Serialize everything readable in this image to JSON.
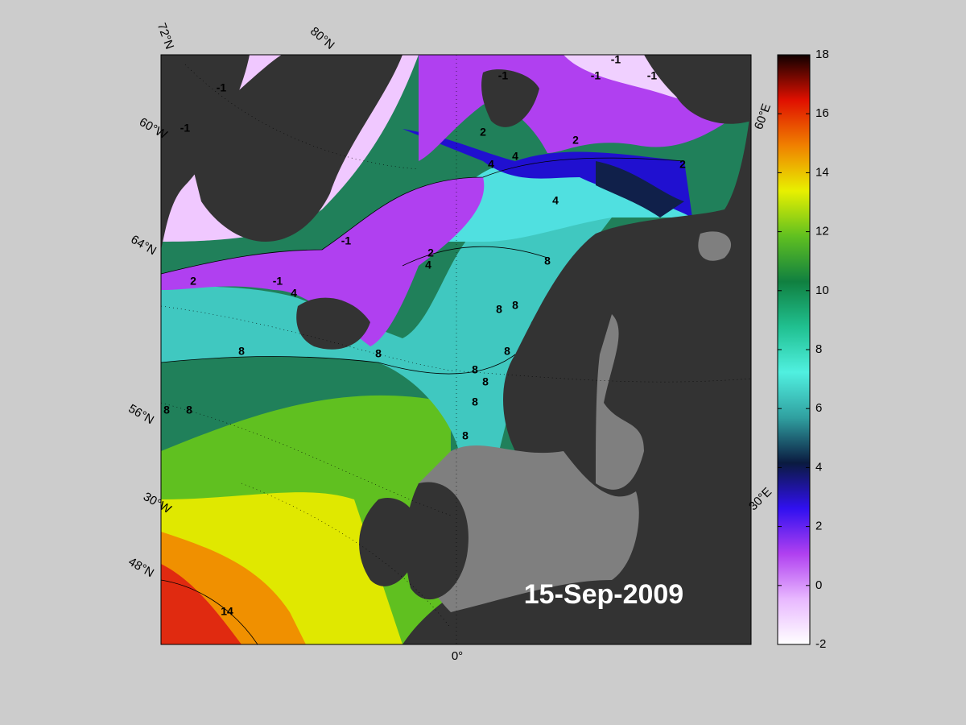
{
  "map": {
    "date": "15-Sep-2009",
    "graticule_labels": [
      "72°N",
      "80°N",
      "60°W",
      "64°N",
      "56°N",
      "30°W",
      "48°N",
      "0°",
      "60°E",
      "30°E"
    ],
    "contour_labels": [
      "-1",
      "-1",
      "-1",
      "-1",
      "-1",
      "-1",
      "-1",
      "-1",
      "2",
      "2",
      "2",
      "2",
      "2",
      "4",
      "4",
      "4",
      "4",
      "4",
      "8",
      "8",
      "8",
      "8",
      "8",
      "8",
      "8",
      "8",
      "8",
      "8",
      "8",
      "8",
      "14"
    ],
    "colorbar": {
      "lim": [
        -2,
        18
      ],
      "ticks": [
        -2,
        0,
        2,
        4,
        6,
        8,
        10,
        12,
        14,
        16,
        18
      ],
      "colors": [
        "#ffffff",
        "#e8b8ff",
        "#b040f0",
        "#3010f0",
        "#0a1a40",
        "#30a0a0",
        "#50f0e0",
        "#20c090",
        "#108040",
        "#60c020",
        "#e8f000",
        "#f08000",
        "#e01000",
        "#100000"
      ]
    }
  }
}
